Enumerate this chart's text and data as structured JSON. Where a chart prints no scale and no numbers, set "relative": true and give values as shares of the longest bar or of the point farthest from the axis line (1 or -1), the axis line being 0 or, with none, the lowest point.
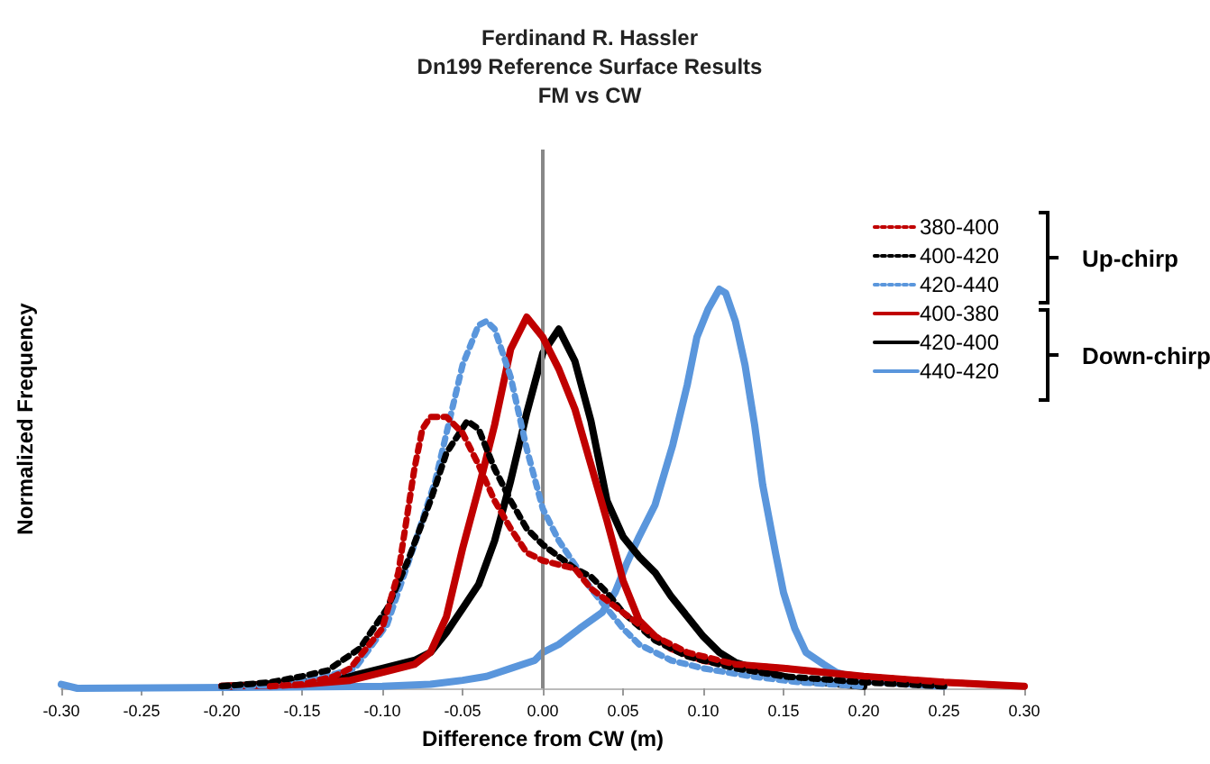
{
  "chart_data": {
    "type": "line",
    "title": "Ferdinand R. Hassler\nDn199 Reference Surface Results\nFM vs CW",
    "xlabel": "Difference from CW (m)",
    "ylabel": "Normalized Frequency",
    "relative": true,
    "grid": false,
    "legend": "right",
    "marker": "none",
    "annotations": [
      "Up-chirp",
      "Down-chirp"
    ],
    "ref_lines": [
      {
        "axis": "x",
        "value": 0,
        "color": "#888888"
      }
    ],
    "xlim": [
      -0.3,
      0.3
    ],
    "xticks": [
      {
        "value": -0.3,
        "label": "-0.30"
      },
      {
        "value": -0.25,
        "label": "-0.25"
      },
      {
        "value": -0.2,
        "label": "-0.20"
      },
      {
        "value": -0.15,
        "label": "-0.15"
      },
      {
        "value": -0.1,
        "label": "-0.10"
      },
      {
        "value": -0.05,
        "label": "-0.05"
      },
      {
        "value": 0,
        "label": "0.00"
      },
      {
        "value": 0.05,
        "label": "0.05"
      },
      {
        "value": 0.1,
        "label": "0.10"
      },
      {
        "value": 0.15,
        "label": "0.15"
      },
      {
        "value": 0.2,
        "label": "0.20"
      },
      {
        "value": 0.25,
        "label": "0.25"
      },
      {
        "value": 0.3,
        "label": "0.30"
      }
    ],
    "series": [
      {
        "name": "380-400",
        "color": "#c00000",
        "line_style": "dotted",
        "x": [
          -0.17,
          -0.15,
          -0.13,
          -0.12,
          -0.11,
          -0.1,
          -0.09,
          -0.085,
          -0.08,
          -0.075,
          -0.07,
          -0.06,
          -0.05,
          -0.04,
          -0.03,
          -0.02,
          -0.01,
          0,
          0.01,
          0.02,
          0.03,
          0.04,
          0.05,
          0.07,
          0.09,
          0.12,
          0.15,
          0.2,
          0.25,
          0.3
        ],
        "values": [
          0.005,
          0.01,
          0.03,
          0.05,
          0.1,
          0.15,
          0.29,
          0.42,
          0.55,
          0.65,
          0.68,
          0.68,
          0.64,
          0.56,
          0.47,
          0.4,
          0.34,
          0.32,
          0.31,
          0.3,
          0.25,
          0.22,
          0.19,
          0.13,
          0.09,
          0.06,
          0.05,
          0.03,
          0.015,
          0.005
        ]
      },
      {
        "name": "400-420",
        "color": "#000000",
        "line_style": "dotted",
        "x": [
          -0.2,
          -0.17,
          -0.15,
          -0.134,
          -0.114,
          -0.097,
          -0.084,
          -0.07,
          -0.06,
          -0.047,
          -0.04,
          -0.03,
          -0.02,
          -0.01,
          0,
          0.01,
          0.02,
          0.03,
          0.04,
          0.05,
          0.07,
          0.09,
          0.12,
          0.15,
          0.2,
          0.25
        ],
        "values": [
          0.005,
          0.015,
          0.03,
          0.045,
          0.1,
          0.2,
          0.32,
          0.47,
          0.59,
          0.67,
          0.65,
          0.55,
          0.47,
          0.4,
          0.36,
          0.33,
          0.3,
          0.28,
          0.24,
          0.19,
          0.12,
          0.08,
          0.05,
          0.03,
          0.015,
          0.005
        ]
      },
      {
        "name": "420-440",
        "color": "#5a96dc",
        "line_style": "dotted",
        "x": [
          -0.2,
          -0.16,
          -0.14,
          -0.117,
          -0.097,
          -0.08,
          -0.067,
          -0.05,
          -0.04,
          -0.035,
          -0.03,
          -0.02,
          -0.01,
          0,
          0.01,
          0.02,
          0.03,
          0.04,
          0.05,
          0.06,
          0.08,
          0.1,
          0.13,
          0.16,
          0.2
        ],
        "values": [
          0.003,
          0.01,
          0.025,
          0.05,
          0.16,
          0.36,
          0.52,
          0.81,
          0.91,
          0.92,
          0.9,
          0.78,
          0.6,
          0.45,
          0.37,
          0.31,
          0.25,
          0.2,
          0.15,
          0.11,
          0.07,
          0.05,
          0.03,
          0.015,
          0.005
        ]
      },
      {
        "name": "400-380",
        "color": "#c00000",
        "line_style": "solid",
        "x": [
          -0.2,
          -0.15,
          -0.12,
          -0.1,
          -0.08,
          -0.07,
          -0.06,
          -0.05,
          -0.04,
          -0.03,
          -0.02,
          -0.01,
          0,
          0.01,
          0.02,
          0.03,
          0.04,
          0.05,
          0.06,
          0.07,
          0.08,
          0.1,
          0.12,
          0.15,
          0.2,
          0.25,
          0.3
        ],
        "values": [
          0.005,
          0.01,
          0.02,
          0.04,
          0.06,
          0.09,
          0.18,
          0.35,
          0.5,
          0.66,
          0.85,
          0.93,
          0.88,
          0.8,
          0.7,
          0.56,
          0.42,
          0.27,
          0.17,
          0.13,
          0.1,
          0.07,
          0.06,
          0.05,
          0.03,
          0.015,
          0.005
        ]
      },
      {
        "name": "420-400",
        "color": "#000000",
        "line_style": "solid",
        "x": [
          -0.2,
          -0.15,
          -0.12,
          -0.1,
          -0.08,
          -0.07,
          -0.06,
          -0.05,
          -0.04,
          -0.03,
          -0.02,
          -0.01,
          0,
          0.01,
          0.02,
          0.03,
          0.04,
          0.05,
          0.06,
          0.07,
          0.08,
          0.09,
          0.1,
          0.11,
          0.12,
          0.14,
          0.16,
          0.2
        ],
        "values": [
          0.005,
          0.015,
          0.03,
          0.05,
          0.07,
          0.09,
          0.14,
          0.2,
          0.26,
          0.37,
          0.52,
          0.69,
          0.84,
          0.9,
          0.82,
          0.67,
          0.47,
          0.38,
          0.33,
          0.29,
          0.23,
          0.18,
          0.13,
          0.09,
          0.065,
          0.04,
          0.02,
          0.005
        ]
      },
      {
        "name": "440-420",
        "color": "#5a96dc",
        "line_style": "solid",
        "x": [
          -0.3,
          -0.29,
          -0.1,
          -0.07,
          -0.05,
          -0.035,
          -0.02,
          -0.005,
          0,
          0.01,
          0.023,
          0.037,
          0.045,
          0.052,
          0.06,
          0.07,
          0.081,
          0.09,
          0.096,
          0.103,
          0.11,
          0.114,
          0.12,
          0.126,
          0.132,
          0.137,
          0.145,
          0.15,
          0.157,
          0.164,
          0.175,
          0.183,
          0.2,
          0.25
        ],
        "values": [
          0.01,
          0,
          0.005,
          0.01,
          0.02,
          0.03,
          0.05,
          0.07,
          0.09,
          0.11,
          0.15,
          0.19,
          0.24,
          0.31,
          0.38,
          0.46,
          0.61,
          0.76,
          0.88,
          0.95,
          1,
          0.99,
          0.92,
          0.81,
          0.66,
          0.51,
          0.34,
          0.24,
          0.15,
          0.09,
          0.06,
          0.04,
          0.02,
          0.005
        ]
      }
    ]
  }
}
